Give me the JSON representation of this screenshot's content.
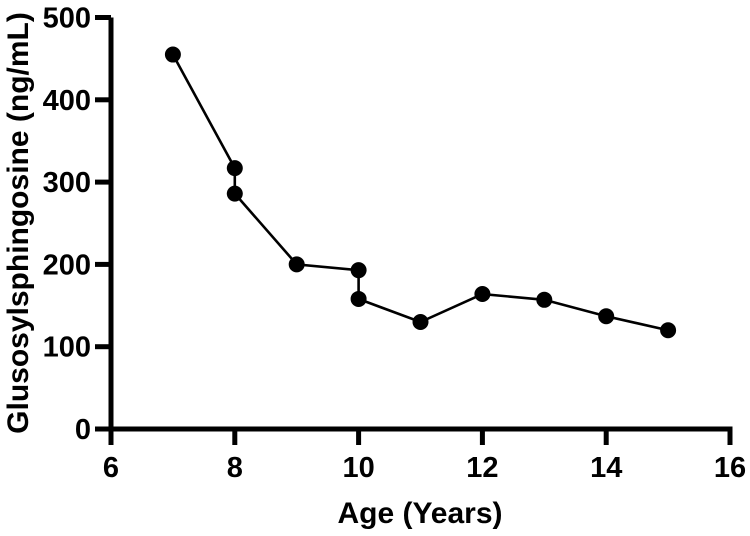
{
  "chart_data": {
    "type": "line",
    "title": "",
    "xlabel": "Age (Years)",
    "ylabel": "Glusosylsphingosine (ng/mL)",
    "xlim": [
      6,
      16
    ],
    "ylim": [
      0,
      500
    ],
    "x_ticks": [
      6,
      8,
      10,
      12,
      14,
      16
    ],
    "y_ticks": [
      0,
      100,
      200,
      300,
      400,
      500
    ],
    "grid": false,
    "legend_position": "none",
    "marker": "filled-circle",
    "colors": {
      "line": "#000000",
      "marker": "#000000",
      "axis": "#000000",
      "background": "#ffffff"
    },
    "series": [
      {
        "name": "Glusosylsphingosine (ng/mL)",
        "points": [
          {
            "x": 7,
            "y": 455
          },
          {
            "x": 8,
            "y": 317
          },
          {
            "x": 8,
            "y": 286
          },
          {
            "x": 9,
            "y": 200
          },
          {
            "x": 10,
            "y": 193
          },
          {
            "x": 10,
            "y": 158
          },
          {
            "x": 11,
            "y": 130
          },
          {
            "x": 12,
            "y": 164
          },
          {
            "x": 13,
            "y": 157
          },
          {
            "x": 14,
            "y": 137
          },
          {
            "x": 15,
            "y": 120
          }
        ]
      }
    ]
  }
}
